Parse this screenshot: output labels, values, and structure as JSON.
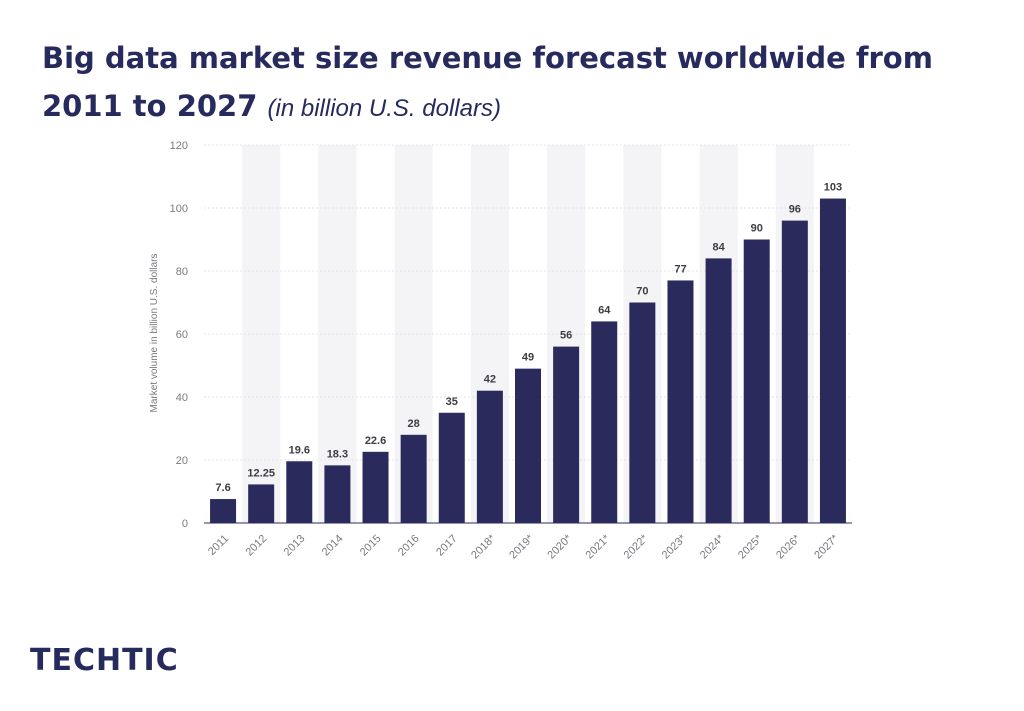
{
  "header": {
    "title": "Big data market size revenue forecast worldwide from 2011 to 2027",
    "subtitle": "(in billion U.S. dollars)"
  },
  "brand": {
    "logo_text": "TECHTIC"
  },
  "colors": {
    "bar": "#2a2b5c",
    "title": "#262a5c",
    "band": "#f4f4f6",
    "grid": "#e4e4e8",
    "tick_text": "#7a7a80",
    "value_text": "#3c3c42"
  },
  "chart_data": {
    "type": "bar",
    "title": "",
    "xlabel": "",
    "ylabel": "Market volume in billion U.S. dollars",
    "ylim": [
      0,
      120
    ],
    "yticks": [
      0,
      20,
      40,
      60,
      80,
      100,
      120
    ],
    "grid": true,
    "categories": [
      "2011",
      "2012",
      "2013",
      "2014",
      "2015",
      "2016",
      "2017",
      "2018*",
      "2019*",
      "2020*",
      "2021*",
      "2022*",
      "2023*",
      "2024*",
      "2025*",
      "2026*",
      "2027*"
    ],
    "values": [
      7.6,
      12.25,
      19.6,
      18.3,
      22.6,
      28,
      35,
      42,
      49,
      56,
      64,
      70,
      77,
      84,
      90,
      96,
      103
    ],
    "value_labels": [
      "7.6",
      "12.25",
      "19.6",
      "18.3",
      "22.6",
      "28",
      "35",
      "42",
      "49",
      "56",
      "64",
      "70",
      "77",
      "84",
      "90",
      "96",
      "103"
    ]
  }
}
